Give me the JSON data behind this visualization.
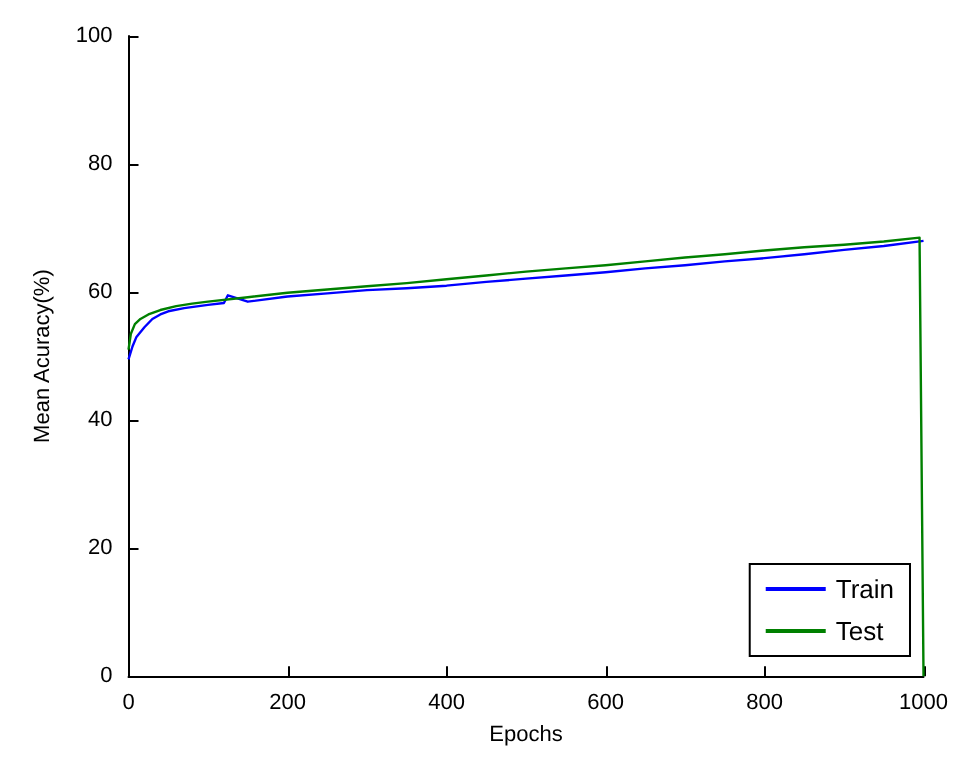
{
  "chart_data": {
    "type": "line",
    "xlabel": "Epochs",
    "ylabel": "Mean Acuracy(%)",
    "xlim": [
      0,
      1000
    ],
    "ylim": [
      0,
      100
    ],
    "xticks": [
      0,
      200,
      400,
      600,
      800,
      1000
    ],
    "yticks": [
      0,
      20,
      40,
      60,
      80,
      100
    ],
    "grid": false,
    "legend": "bottom right",
    "marker": "none",
    "line_style": "solid",
    "series": [
      {
        "name": "Train",
        "color": "#0000ff",
        "x": [
          0,
          5,
          10,
          20,
          30,
          40,
          50,
          70,
          100,
          120,
          125,
          150,
          200,
          250,
          300,
          350,
          400,
          450,
          500,
          550,
          600,
          650,
          700,
          750,
          800,
          850,
          900,
          950,
          1000
        ],
        "values": [
          49.5,
          51.5,
          53,
          54.5,
          55.8,
          56.5,
          57,
          57.5,
          58,
          58.3,
          59.5,
          58.5,
          59.3,
          59.8,
          60.3,
          60.6,
          61,
          61.6,
          62.1,
          62.6,
          63.1,
          63.7,
          64.2,
          64.8,
          65.3,
          65.9,
          66.6,
          67.2,
          68
        ]
      },
      {
        "name": "Test",
        "color": "#008000",
        "x": [
          0,
          3,
          8,
          15,
          25,
          40,
          60,
          80,
          100,
          150,
          200,
          250,
          300,
          350,
          400,
          450,
          500,
          550,
          600,
          650,
          700,
          750,
          800,
          850,
          900,
          950,
          995,
          1000
        ],
        "values": [
          51,
          53.5,
          55,
          55.8,
          56.5,
          57.2,
          57.8,
          58.2,
          58.5,
          59.2,
          59.9,
          60.4,
          60.9,
          61.4,
          62,
          62.6,
          63.2,
          63.7,
          64.2,
          64.8,
          65.4,
          65.9,
          66.5,
          67,
          67.4,
          67.9,
          68.5,
          0
        ]
      }
    ]
  }
}
